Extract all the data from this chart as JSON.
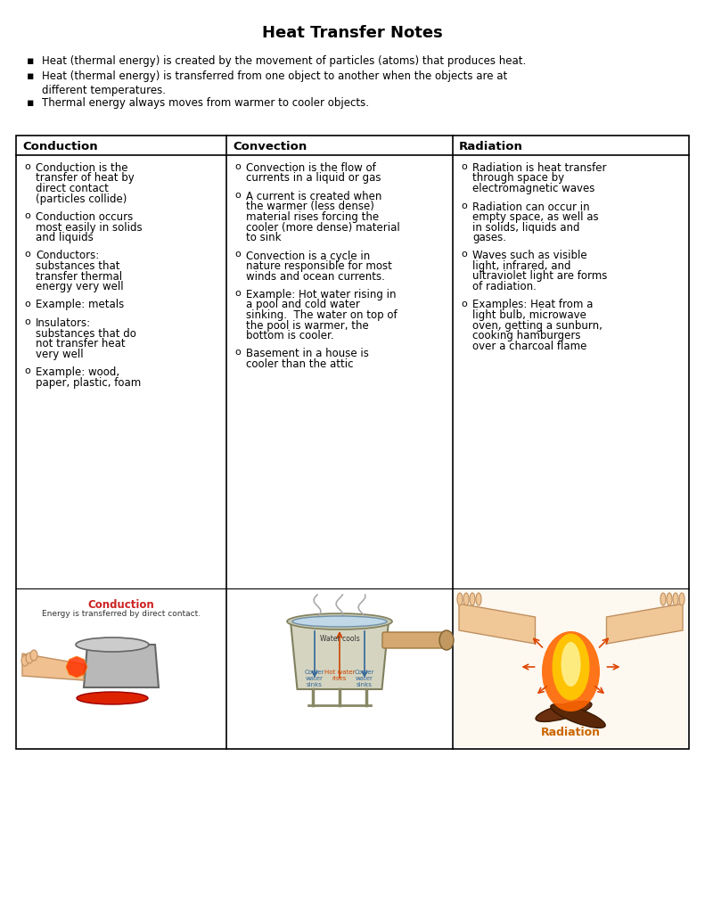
{
  "title": "Heat Transfer Notes",
  "bullets": [
    "Heat (thermal energy) is created by the movement of particles (atoms) that produces heat.",
    "Heat (thermal energy) is transferred from one object to another when the objects are at different temperatures.",
    "Thermal energy always moves from warmer to cooler objects."
  ],
  "col_headers": [
    "Conduction",
    "Convection",
    "Radiation"
  ],
  "col_content": [
    [
      "Conduction is the\ntransfer of heat by\ndirect contact\n(particles collide)",
      "Conduction occurs\nmost easily in solids\nand liquids",
      "Conductors:\nsubstances that\ntransfer thermal\nenergy very well",
      "Example: metals",
      "Insulators:\nsubstances that do\nnot transfer heat\nvery well",
      "Example: wood,\npaper, plastic, foam"
    ],
    [
      "Convection is the flow of\ncurrents in a liquid or gas",
      "A current is created when\nthe warmer (less dense)\nmaterial rises forcing the\ncooler (more dense) material\nto sink",
      "Convection is a cycle in\nnature responsible for most\nwinds and ocean currents.",
      "Example: Hot water rising in\na pool and cold water\nsinking.  The water on top of\nthe pool is warmer, the\nbottom is cooler.",
      "Basement in a house is\ncooler than the attic"
    ],
    [
      "Radiation is heat transfer\nthrough space by\nelectromagnetic waves",
      "Radiation can occur in\nempty space, as well as\nin solids, liquids and\ngases.",
      "Waves such as visible\nlight, infrared, and\nultraviolet light are forms\nof radiation.",
      "Examples: Heat from a\nlight bulb, microwave\noven, getting a sunburn,\ncooking hamburgers\nover a charcoal flame"
    ]
  ],
  "bg_color": "#ffffff",
  "text_color": "#000000",
  "border_color": "#000000",
  "font_size_title": 13,
  "font_size_body": 8.5,
  "font_size_header": 9.5,
  "font_size_bullet": 8.5,
  "conduction_label": "Conduction",
  "conduction_sublabel": "Energy is transferred by direct contact.",
  "radiation_label": "Radiation"
}
